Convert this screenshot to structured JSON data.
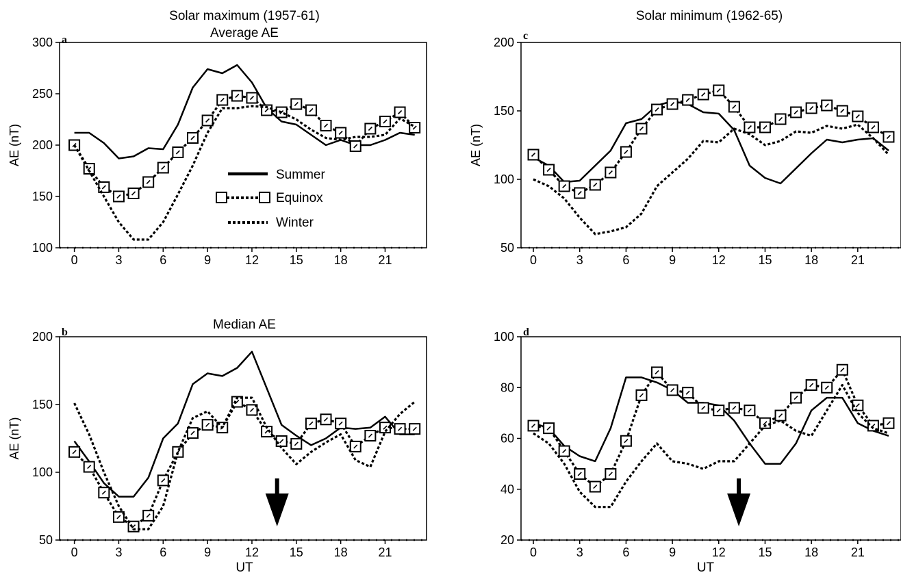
{
  "header": {
    "left_title": "Solar maximum (1957-61)",
    "right_title": "Solar minimum (1962-65)",
    "row1_sub": "Average AE",
    "row2_sub": "Median AE"
  },
  "legend": {
    "summer": "Summer",
    "equinox": "Equinox",
    "winter": "Winter"
  },
  "colors": {
    "ink": "#000000",
    "background": "#ffffff"
  },
  "chart_data": [
    {
      "type": "line",
      "panel": "a",
      "title": "Average AE",
      "xlabel": "",
      "ylabel": "AE (nT)",
      "xlim": [
        -1,
        23.8
      ],
      "ylim": [
        100,
        300
      ],
      "xticks": [
        0,
        3,
        6,
        9,
        12,
        15,
        18,
        21
      ],
      "yticks": [
        100,
        150,
        200,
        250,
        300
      ],
      "x": [
        0,
        1,
        2,
        3,
        4,
        5,
        6,
        7,
        8,
        9,
        10,
        11,
        12,
        13,
        14,
        15,
        16,
        17,
        18,
        19,
        20,
        21,
        22,
        23
      ],
      "series": [
        {
          "name": "Summer",
          "style": "solid",
          "values": [
            212,
            212,
            202,
            187,
            189,
            197,
            196,
            220,
            256,
            274,
            270,
            278,
            261,
            236,
            223,
            220,
            210,
            200,
            205,
            200,
            200,
            205,
            212,
            210
          ]
        },
        {
          "name": "Equinox",
          "style": "dotted-square",
          "values": [
            200,
            177,
            159,
            150,
            153,
            164,
            178,
            193,
            207,
            224,
            244,
            248,
            246,
            234,
            232,
            240,
            234,
            219,
            212,
            199,
            216,
            223,
            232,
            217
          ]
        },
        {
          "name": "Winter",
          "style": "dotted",
          "values": [
            200,
            175,
            150,
            125,
            108,
            108,
            125,
            152,
            180,
            212,
            236,
            236,
            238,
            237,
            232,
            225,
            215,
            207,
            205,
            208,
            208,
            210,
            226,
            218
          ]
        }
      ]
    },
    {
      "type": "line",
      "panel": "b",
      "title": "Median AE",
      "xlabel": "UT",
      "ylabel": "AE (nT)",
      "xlim": [
        -1,
        23.8
      ],
      "ylim": [
        50,
        200
      ],
      "xticks": [
        0,
        3,
        6,
        9,
        12,
        15,
        18,
        21
      ],
      "yticks": [
        50,
        100,
        150,
        200
      ],
      "x": [
        0,
        1,
        2,
        3,
        4,
        5,
        6,
        7,
        8,
        9,
        10,
        11,
        12,
        13,
        14,
        15,
        16,
        17,
        18,
        19,
        20,
        21,
        22,
        23
      ],
      "series": [
        {
          "name": "Summer",
          "style": "solid",
          "values": [
            123,
            108,
            92,
            82,
            82,
            96,
            125,
            136,
            165,
            173,
            171,
            177,
            189,
            162,
            135,
            127,
            120,
            125,
            133,
            132,
            133,
            141,
            128,
            128
          ]
        },
        {
          "name": "Equinox",
          "style": "dotted-square",
          "values": [
            115,
            104,
            85,
            67,
            60,
            68,
            94,
            115,
            129,
            135,
            133,
            152,
            146,
            130,
            123,
            121,
            136,
            139,
            136,
            119,
            127,
            133,
            132,
            132
          ]
        },
        {
          "name": "Winter",
          "style": "dotted",
          "values": [
            151,
            128,
            100,
            75,
            58,
            58,
            75,
            115,
            140,
            145,
            133,
            155,
            155,
            133,
            118,
            106,
            115,
            122,
            128,
            109,
            104,
            130,
            143,
            152
          ]
        }
      ],
      "annotation": {
        "type": "arrow",
        "x": 13.7
      }
    },
    {
      "type": "line",
      "panel": "c",
      "title": "",
      "xlabel": "",
      "ylabel": "AE (nT)",
      "xlim": [
        -0.8,
        23.8
      ],
      "ylim": [
        50,
        200
      ],
      "xticks": [
        0,
        3,
        6,
        9,
        12,
        15,
        18,
        21
      ],
      "yticks": [
        50,
        100,
        150,
        200
      ],
      "x": [
        0,
        1,
        2,
        3,
        4,
        5,
        6,
        7,
        8,
        9,
        10,
        11,
        12,
        13,
        14,
        15,
        16,
        17,
        18,
        19,
        20,
        21,
        22,
        23
      ],
      "series": [
        {
          "name": "Summer",
          "style": "solid",
          "values": [
            116,
            110,
            98,
            99,
            110,
            121,
            141,
            144,
            154,
            157,
            155,
            149,
            148,
            136,
            110,
            101,
            97,
            108,
            119,
            129,
            127,
            129,
            130,
            121
          ]
        },
        {
          "name": "Equinox",
          "style": "dotted-square",
          "values": [
            118,
            107,
            95,
            90,
            96,
            105,
            120,
            137,
            151,
            155,
            158,
            162,
            165,
            153,
            138,
            138,
            144,
            149,
            152,
            154,
            150,
            146,
            138,
            131
          ]
        },
        {
          "name": "Winter",
          "style": "dotted",
          "values": [
            100,
            95,
            86,
            72,
            60,
            62,
            65,
            75,
            95,
            105,
            115,
            128,
            127,
            137,
            133,
            125,
            128,
            135,
            134,
            139,
            137,
            140,
            130,
            118
          ]
        }
      ]
    },
    {
      "type": "line",
      "panel": "d",
      "title": "",
      "xlabel": "UT",
      "ylabel": "",
      "xlim": [
        -0.8,
        23.8
      ],
      "ylim": [
        20,
        100
      ],
      "xticks": [
        0,
        3,
        6,
        9,
        12,
        15,
        18,
        21
      ],
      "yticks": [
        20,
        40,
        60,
        80,
        100
      ],
      "x": [
        0,
        1,
        2,
        3,
        4,
        5,
        6,
        7,
        8,
        9,
        10,
        11,
        12,
        13,
        14,
        15,
        16,
        17,
        18,
        19,
        20,
        21,
        22,
        23
      ],
      "series": [
        {
          "name": "Summer",
          "style": "solid",
          "values": [
            66,
            64,
            57,
            53,
            51,
            64,
            84,
            84,
            82,
            79,
            74,
            74,
            73,
            67,
            58,
            50,
            50,
            58,
            71,
            76,
            76,
            66,
            63,
            61
          ]
        },
        {
          "name": "Equinox",
          "style": "dotted-square",
          "values": [
            65,
            64,
            55,
            46,
            41,
            46,
            59,
            77,
            86,
            79,
            78,
            72,
            71,
            72,
            71,
            66,
            69,
            76,
            81,
            80,
            87,
            73,
            65,
            66
          ]
        },
        {
          "name": "Winter",
          "style": "dotted",
          "values": [
            62,
            58,
            50,
            39,
            33,
            33,
            43,
            51,
            58,
            51,
            50,
            48,
            51,
            51,
            58,
            65,
            67,
            63,
            61,
            71,
            81,
            70,
            64,
            62
          ]
        }
      ],
      "annotation": {
        "type": "arrow",
        "x": 13.3
      }
    }
  ]
}
